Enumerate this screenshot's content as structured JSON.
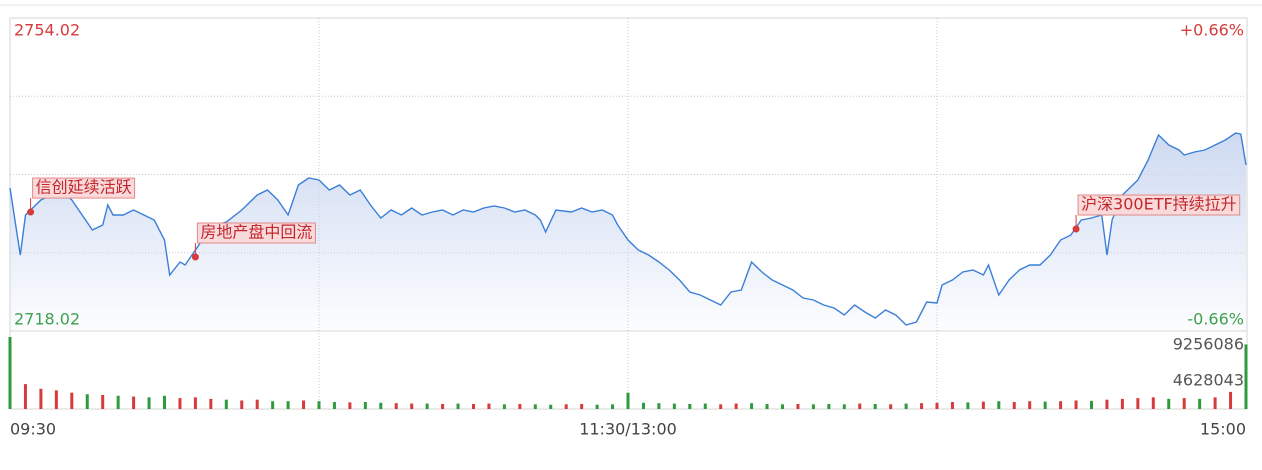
{
  "chart_data": {
    "type": "intraday",
    "up_color": "#d63b3b",
    "down_color": "#2f9a3c",
    "line_color": "#3b7fd8",
    "xlim": [
      0,
      240
    ],
    "xticks": [
      {
        "value": 0,
        "label": "09:30"
      },
      {
        "value": 120,
        "label": "11:30/13:00"
      },
      {
        "value": 240,
        "label": "15:00"
      }
    ],
    "xgrid": [
      60,
      120,
      180
    ],
    "ylim": [
      2718.02,
      2754.02
    ],
    "yticks": [
      2718.02,
      2754.02
    ],
    "ygrid": [
      2727.02,
      2736.02,
      2745.02
    ],
    "y2lim": [
      -0.66,
      0.66
    ],
    "y2ticks": [
      {
        "value": -0.66,
        "label": "-0.66%"
      },
      {
        "value": 0.66,
        "label": "+0.66%"
      }
    ],
    "series": [
      {
        "name": "price",
        "x": [
          0,
          2,
          3,
          6,
          8,
          10,
          12,
          14,
          16,
          18,
          19,
          20,
          22,
          24,
          26,
          28,
          30,
          31,
          33,
          34,
          36,
          38,
          40,
          42,
          45,
          48,
          50,
          52,
          54,
          56,
          58,
          60,
          62,
          64,
          66,
          68,
          70,
          72,
          74,
          76,
          78,
          80,
          82,
          84,
          86,
          88,
          90,
          92,
          94,
          96,
          98,
          100,
          102,
          103,
          104,
          106,
          109,
          111,
          113,
          115,
          117,
          118,
          120,
          122,
          124,
          126,
          128,
          130,
          132,
          134,
          136,
          138,
          140,
          142,
          144,
          146,
          148,
          150,
          152,
          154,
          156,
          158,
          160,
          162,
          164,
          166,
          168,
          170,
          172,
          174,
          176,
          178,
          180,
          181,
          183,
          185,
          187,
          189,
          190,
          192,
          194,
          196,
          198,
          200,
          202,
          204,
          206,
          208,
          210,
          212,
          213,
          214,
          216,
          218,
          219,
          221,
          223,
          225,
          227,
          228,
          230,
          232,
          234,
          236,
          238,
          239,
          240
        ],
        "values": [
          2734.47,
          2726.76,
          2731.36,
          2733.09,
          2733.66,
          2734.24,
          2733.09,
          2731.36,
          2729.64,
          2730.21,
          2732.51,
          2731.36,
          2731.36,
          2731.94,
          2731.36,
          2730.79,
          2728.49,
          2724.46,
          2725.96,
          2725.61,
          2727.34,
          2729.06,
          2730.21,
          2730.56,
          2731.94,
          2733.66,
          2734.24,
          2733.09,
          2731.36,
          2734.81,
          2735.62,
          2735.39,
          2734.24,
          2734.81,
          2733.66,
          2734.24,
          2732.51,
          2731.02,
          2731.94,
          2731.36,
          2732.17,
          2731.36,
          2731.71,
          2731.94,
          2731.36,
          2731.94,
          2731.71,
          2732.17,
          2732.4,
          2732.17,
          2731.71,
          2731.94,
          2731.36,
          2730.79,
          2729.41,
          2731.94,
          2731.71,
          2732.17,
          2731.71,
          2731.94,
          2731.36,
          2730.21,
          2728.49,
          2727.34,
          2726.76,
          2725.96,
          2725.04,
          2723.89,
          2722.51,
          2722.16,
          2721.59,
          2721.01,
          2722.51,
          2722.74,
          2725.96,
          2724.81,
          2723.89,
          2723.31,
          2722.74,
          2721.82,
          2721.59,
          2721.01,
          2720.67,
          2719.86,
          2721.01,
          2720.21,
          2719.52,
          2720.44,
          2719.86,
          2718.71,
          2719.06,
          2721.36,
          2721.24,
          2723.31,
          2723.89,
          2724.81,
          2725.04,
          2724.46,
          2725.61,
          2722.16,
          2723.89,
          2725.04,
          2725.61,
          2725.61,
          2726.76,
          2728.49,
          2729.06,
          2730.79,
          2731.02,
          2731.36,
          2726.76,
          2730.79,
          2733.66,
          2734.81,
          2735.39,
          2737.69,
          2740.56,
          2739.41,
          2738.84,
          2738.26,
          2738.61,
          2738.84,
          2739.41,
          2739.99,
          2740.79,
          2740.67,
          2737.11
        ]
      }
    ],
    "annotations": [
      {
        "text": "信创延续活跃",
        "x": 4,
        "y": 2731.7
      },
      {
        "text": "房地产盘中回流",
        "x": 36,
        "y": 2726.53
      },
      {
        "text": "沪深300ETF持续拉升",
        "x": 207,
        "y": 2729.75
      }
    ],
    "volume": {
      "ylim": [
        0,
        9256086
      ],
      "yticks": [
        4628043,
        9256086
      ],
      "x": [
        0,
        3,
        6,
        9,
        12,
        15,
        18,
        21,
        24,
        27,
        30,
        33,
        36,
        39,
        42,
        45,
        48,
        51,
        54,
        57,
        60,
        63,
        66,
        69,
        72,
        75,
        78,
        81,
        84,
        87,
        90,
        93,
        96,
        99,
        102,
        105,
        108,
        111,
        114,
        117,
        120,
        123,
        126,
        129,
        132,
        135,
        138,
        141,
        144,
        147,
        150,
        153,
        156,
        159,
        162,
        165,
        168,
        171,
        174,
        177,
        180,
        183,
        186,
        189,
        192,
        195,
        198,
        201,
        204,
        207,
        210,
        213,
        216,
        219,
        222,
        225,
        228,
        231,
        234,
        237,
        240
      ],
      "values": [
        9256086,
        3200000,
        2600000,
        2400000,
        2100000,
        1900000,
        1800000,
        1700000,
        1600000,
        1500000,
        1700000,
        1400000,
        1500000,
        1300000,
        1200000,
        1100000,
        1200000,
        1000000,
        1000000,
        1100000,
        1000000,
        900000,
        850000,
        900000,
        800000,
        750000,
        700000,
        700000,
        650000,
        700000,
        650000,
        700000,
        600000,
        650000,
        600000,
        550000,
        600000,
        650000,
        550000,
        600000,
        2100000,
        800000,
        750000,
        700000,
        650000,
        700000,
        600000,
        700000,
        750000,
        650000,
        600000,
        650000,
        600000,
        650000,
        600000,
        700000,
        650000,
        600000,
        700000,
        750000,
        800000,
        900000,
        850000,
        950000,
        1000000,
        900000,
        1000000,
        950000,
        1000000,
        1100000,
        1050000,
        1200000,
        1300000,
        1400000,
        1500000,
        1300000,
        1400000,
        1300000,
        1500000,
        2200000,
        8300000
      ],
      "colors": [
        "#2f9a3c",
        "#d63b3b",
        "#d63b3b",
        "#d63b3b",
        "#d63b3b",
        "#2f9a3c",
        "#d63b3b",
        "#2f9a3c",
        "#d63b3b",
        "#2f9a3c",
        "#2f9a3c",
        "#d63b3b",
        "#d63b3b",
        "#d63b3b",
        "#2f9a3c",
        "#d63b3b",
        "#d63b3b",
        "#2f9a3c",
        "#2f9a3c",
        "#d63b3b",
        "#2f9a3c",
        "#2f9a3c",
        "#d63b3b",
        "#2f9a3c",
        "#2f9a3c",
        "#d63b3b",
        "#d63b3b",
        "#2f9a3c",
        "#d63b3b",
        "#2f9a3c",
        "#d63b3b",
        "#d63b3b",
        "#2f9a3c",
        "#d63b3b",
        "#2f9a3c",
        "#2f9a3c",
        "#d63b3b",
        "#d63b3b",
        "#2f9a3c",
        "#2f9a3c",
        "#2f9a3c",
        "#2f9a3c",
        "#2f9a3c",
        "#2f9a3c",
        "#2f9a3c",
        "#2f9a3c",
        "#d63b3b",
        "#d63b3b",
        "#2f9a3c",
        "#2f9a3c",
        "#2f9a3c",
        "#d63b3b",
        "#2f9a3c",
        "#2f9a3c",
        "#2f9a3c",
        "#d63b3b",
        "#2f9a3c",
        "#d63b3b",
        "#2f9a3c",
        "#d63b3b",
        "#d63b3b",
        "#d63b3b",
        "#2f9a3c",
        "#d63b3b",
        "#2f9a3c",
        "#d63b3b",
        "#d63b3b",
        "#2f9a3c",
        "#d63b3b",
        "#d63b3b",
        "#2f9a3c",
        "#d63b3b",
        "#d63b3b",
        "#d63b3b",
        "#d63b3b",
        "#2f9a3c",
        "#d63b3b",
        "#2f9a3c",
        "#d63b3b",
        "#d63b3b",
        "#2f9a3c"
      ]
    }
  }
}
